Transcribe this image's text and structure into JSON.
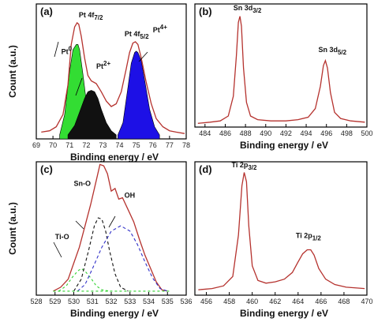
{
  "chart_data": [
    {
      "panel": "(a)",
      "type": "line",
      "xlabel": "Binding energy / eV",
      "ylabel": "Count (a.u.)",
      "xlim": [
        69,
        78
      ],
      "xticks": [
        "69",
        "70",
        "71",
        "72",
        "73",
        "74",
        "75",
        "76",
        "77",
        "78"
      ],
      "ylim": [
        0,
        1
      ],
      "series": [
        {
          "role": "envelope",
          "color": "#b5322e",
          "x": [
            69.3,
            69.8,
            70.2,
            70.6,
            70.9,
            71.1,
            71.3,
            71.45,
            71.55,
            71.7,
            71.9,
            72.1,
            72.3,
            72.6,
            72.9,
            73.2,
            73.5,
            73.8,
            74.1,
            74.4,
            74.6,
            74.8,
            74.95,
            75.1,
            75.3,
            75.6,
            75.9,
            76.2,
            76.6,
            77.0,
            77.4,
            77.9
          ],
          "y": [
            0.05,
            0.06,
            0.09,
            0.18,
            0.4,
            0.7,
            0.83,
            0.86,
            0.85,
            0.76,
            0.6,
            0.47,
            0.43,
            0.41,
            0.35,
            0.28,
            0.24,
            0.26,
            0.35,
            0.52,
            0.64,
            0.71,
            0.72,
            0.7,
            0.6,
            0.42,
            0.26,
            0.15,
            0.09,
            0.06,
            0.05,
            0.04
          ]
        },
        {
          "role": "component-fill",
          "color": "#33dd33",
          "x": [
            70.4,
            70.7,
            71.0,
            71.2,
            71.4,
            71.5,
            71.6,
            71.8,
            72.0,
            72.2,
            72.4,
            72.6
          ],
          "y": [
            0.03,
            0.18,
            0.5,
            0.66,
            0.7,
            0.7,
            0.66,
            0.48,
            0.28,
            0.13,
            0.06,
            0.03
          ]
        },
        {
          "role": "component-fill",
          "color": "#111111",
          "x": [
            70.9,
            71.3,
            71.6,
            71.9,
            72.1,
            72.3,
            72.5,
            72.7,
            72.9,
            73.2,
            73.5,
            73.8
          ],
          "y": [
            0.03,
            0.1,
            0.2,
            0.3,
            0.35,
            0.36,
            0.35,
            0.3,
            0.22,
            0.12,
            0.06,
            0.03
          ]
        },
        {
          "role": "component-fill",
          "color": "#1d10e6",
          "x": [
            73.9,
            74.2,
            74.5,
            74.7,
            74.9,
            75.0,
            75.1,
            75.3,
            75.5,
            75.8,
            76.1,
            76.4
          ],
          "y": [
            0.03,
            0.12,
            0.38,
            0.56,
            0.64,
            0.65,
            0.64,
            0.58,
            0.44,
            0.22,
            0.09,
            0.03
          ]
        }
      ],
      "annotations": [
        {
          "text": "Pt 4f",
          "sub": "7/2",
          "at": [
            71.55,
            0.9
          ]
        },
        {
          "text": "Pt",
          "sup": "0",
          "at": [
            70.5,
            0.63
          ]
        },
        {
          "text": "Pt",
          "sup": "2+",
          "at": [
            72.6,
            0.52
          ]
        },
        {
          "text": "Pt 4f",
          "sub": "5/2",
          "at": [
            74.3,
            0.76
          ]
        },
        {
          "text": "Pt",
          "sup": "4+",
          "at": [
            76.0,
            0.79
          ]
        }
      ]
    },
    {
      "panel": "(b)",
      "type": "line",
      "xlabel": "Binding energy / eV",
      "ylabel": "",
      "xlim": [
        483,
        500
      ],
      "xticks": [
        "484",
        "486",
        "488",
        "490",
        "492",
        "494",
        "496",
        "498",
        "500"
      ],
      "ylim": [
        0,
        1
      ],
      "series": [
        {
          "role": "spectrum",
          "color": "#b5322e",
          "x": [
            483.3,
            484.5,
            485.5,
            486.3,
            486.8,
            487.1,
            487.3,
            487.45,
            487.6,
            487.8,
            488.1,
            488.5,
            489.2,
            490.5,
            492.0,
            493.2,
            494.2,
            494.9,
            495.4,
            495.7,
            495.9,
            496.1,
            496.4,
            496.8,
            497.4,
            498.4,
            499.8
          ],
          "y": [
            0.03,
            0.04,
            0.05,
            0.09,
            0.25,
            0.58,
            0.85,
            0.9,
            0.82,
            0.48,
            0.2,
            0.09,
            0.06,
            0.05,
            0.05,
            0.06,
            0.08,
            0.15,
            0.33,
            0.5,
            0.54,
            0.48,
            0.28,
            0.12,
            0.07,
            0.05,
            0.04
          ]
        }
      ],
      "annotations": [
        {
          "text": "Sn 3d",
          "sub": "3/2",
          "at": [
            486.8,
            0.95
          ]
        },
        {
          "text": "Sn 3d",
          "sub": "5/2",
          "at": [
            495.2,
            0.61
          ]
        }
      ]
    },
    {
      "panel": "(c)",
      "type": "line",
      "xlabel": "Binding energy / eV",
      "ylabel": "Count (a.u.)",
      "xlim": [
        528,
        536
      ],
      "xticks": [
        "528",
        "529",
        "530",
        "531",
        "532",
        "533",
        "534",
        "535",
        "536"
      ],
      "ylim": [
        0,
        1
      ],
      "series": [
        {
          "role": "envelope",
          "color": "#b5322e",
          "x": [
            528.9,
            529.3,
            529.7,
            530.0,
            530.3,
            530.6,
            530.9,
            531.2,
            531.4,
            531.6,
            531.8,
            532.0,
            532.2,
            532.4,
            532.6,
            532.9,
            533.2,
            533.5,
            533.8,
            534.1,
            534.4,
            534.7,
            535.0
          ],
          "y": [
            0.03,
            0.06,
            0.12,
            0.24,
            0.36,
            0.52,
            0.68,
            0.86,
            0.98,
            0.97,
            0.91,
            0.78,
            0.8,
            0.72,
            0.73,
            0.64,
            0.55,
            0.42,
            0.3,
            0.2,
            0.1,
            0.04,
            0.03
          ]
        },
        {
          "role": "component",
          "name": "Ti-O",
          "color": "#2fd12f",
          "dash": "3,3",
          "x": [
            529.2,
            529.6,
            529.9,
            530.2,
            530.4,
            530.6,
            530.9,
            531.2,
            531.5,
            531.9
          ],
          "y": [
            0.03,
            0.07,
            0.13,
            0.18,
            0.2,
            0.18,
            0.13,
            0.07,
            0.04,
            0.03
          ]
        },
        {
          "role": "component",
          "name": "Sn-O",
          "color": "#111111",
          "dash": "4,3",
          "x": [
            530.0,
            530.4,
            530.8,
            531.1,
            531.3,
            531.5,
            531.7,
            531.9,
            532.2,
            532.5,
            532.9
          ],
          "y": [
            0.03,
            0.12,
            0.34,
            0.52,
            0.58,
            0.57,
            0.48,
            0.34,
            0.16,
            0.06,
            0.03
          ]
        },
        {
          "role": "component",
          "name": "OH",
          "color": "#3030c8",
          "dash": "4,3",
          "x": [
            530.2,
            530.6,
            531.0,
            531.5,
            532.0,
            532.5,
            533.0,
            533.4,
            533.8,
            534.2,
            534.6,
            535.0
          ],
          "y": [
            0.03,
            0.08,
            0.2,
            0.36,
            0.48,
            0.52,
            0.48,
            0.38,
            0.25,
            0.13,
            0.05,
            0.03
          ]
        },
        {
          "role": "baseline",
          "color": "#2fd12f",
          "dash": "3,3",
          "x": [
            528.9,
            535.1
          ],
          "y": [
            0.03,
            0.03
          ]
        }
      ],
      "annotations": [
        {
          "text": "Sn-O",
          "at": [
            530.0,
            0.82
          ]
        },
        {
          "text": "OH",
          "at": [
            532.7,
            0.73
          ]
        },
        {
          "text": "Ti-O",
          "at": [
            529.0,
            0.42
          ]
        }
      ]
    },
    {
      "panel": "(d)",
      "type": "line",
      "xlabel": "Binding energy / eV",
      "ylabel": "",
      "xlim": [
        455,
        470
      ],
      "xticks": [
        "456",
        "458",
        "460",
        "462",
        "464",
        "466",
        "468",
        "470"
      ],
      "ylim": [
        0,
        1
      ],
      "series": [
        {
          "role": "spectrum",
          "color": "#b5322e",
          "x": [
            455.3,
            456.5,
            457.5,
            458.3,
            458.8,
            459.1,
            459.3,
            459.5,
            459.7,
            460.0,
            460.5,
            461.2,
            462.0,
            462.8,
            463.5,
            464.0,
            464.4,
            464.8,
            465.1,
            465.4,
            465.8,
            466.4,
            467.2,
            468.2,
            469.8
          ],
          "y": [
            0.04,
            0.05,
            0.07,
            0.14,
            0.45,
            0.82,
            0.92,
            0.85,
            0.52,
            0.22,
            0.11,
            0.09,
            0.1,
            0.12,
            0.17,
            0.25,
            0.31,
            0.34,
            0.34,
            0.3,
            0.2,
            0.12,
            0.08,
            0.06,
            0.05
          ]
        }
      ],
      "annotations": [
        {
          "text": "Ti 2p",
          "sub": "3/2",
          "at": [
            458.2,
            0.96
          ]
        },
        {
          "text": "Ti 2p",
          "sub": "1/2",
          "at": [
            463.8,
            0.43
          ]
        }
      ]
    }
  ]
}
